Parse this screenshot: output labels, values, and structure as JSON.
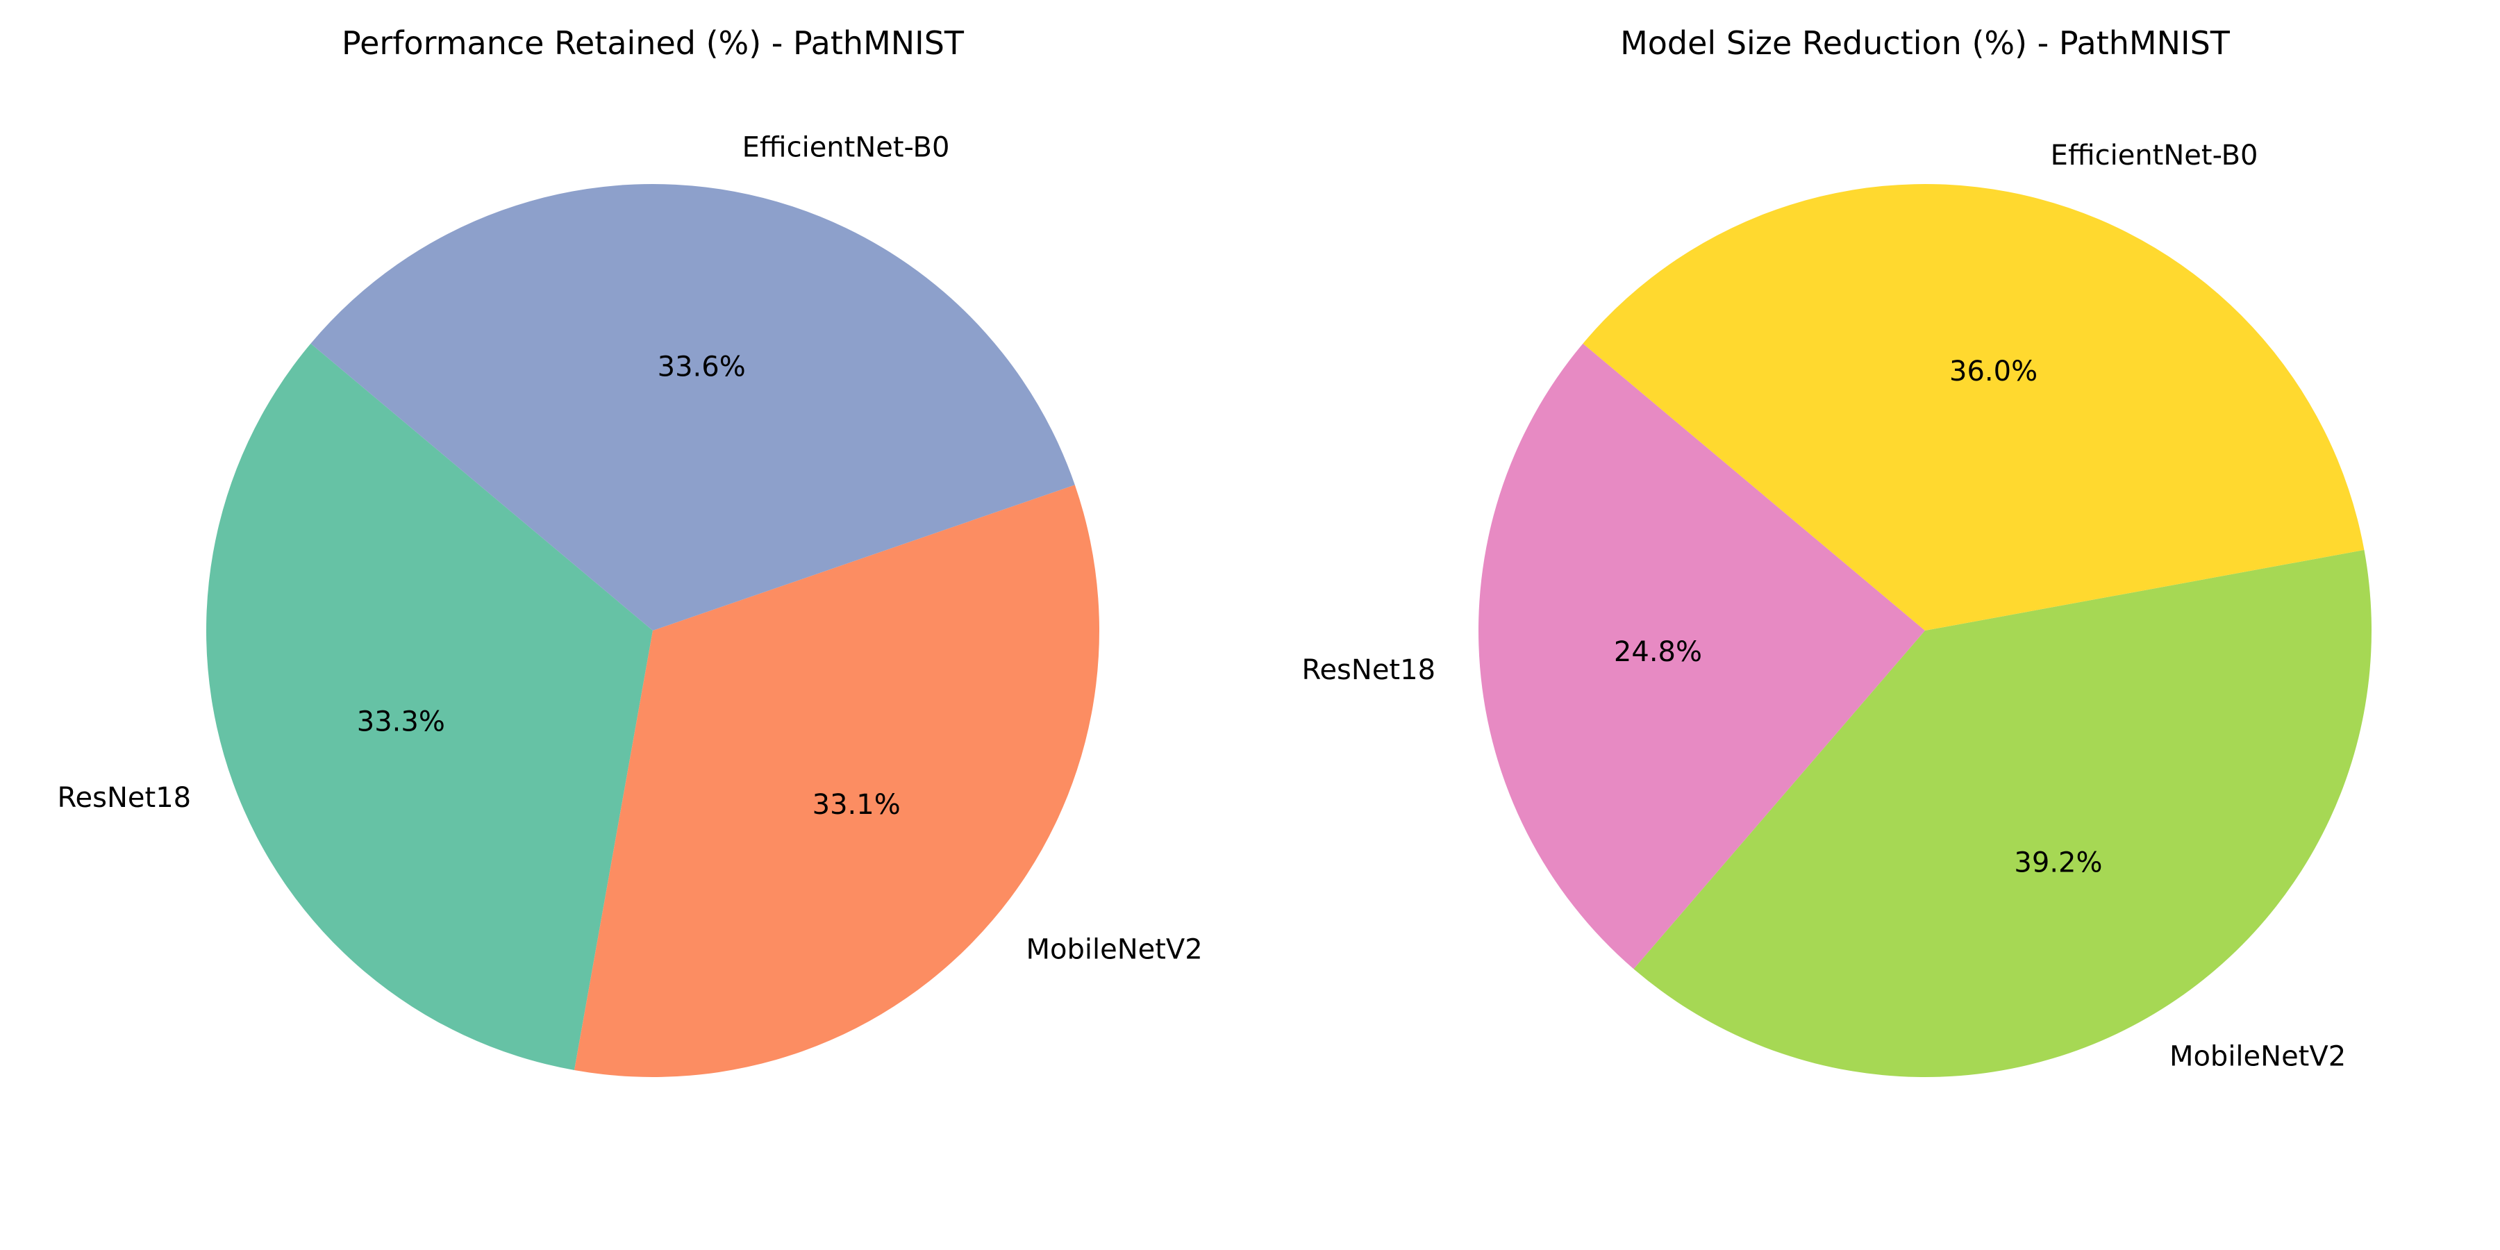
{
  "chart_data": [
    {
      "type": "pie",
      "title": "Performance Retained (%) - PathMNIST",
      "slices": [
        {
          "label": "ResNet18",
          "value": 33.3,
          "pct_label": "33.3%",
          "color": "#66c2a5"
        },
        {
          "label": "MobileNetV2",
          "value": 33.1,
          "pct_label": "33.1%",
          "color": "#fc8d62"
        },
        {
          "label": "EfficientNet-B0",
          "value": 33.6,
          "pct_label": "33.6%",
          "color": "#8da0cb"
        }
      ]
    },
    {
      "type": "pie",
      "title": "Model Size Reduction (%) - PathMNIST",
      "slices": [
        {
          "label": "ResNet18",
          "value": 24.8,
          "pct_label": "24.8%",
          "color": "#e78ac3"
        },
        {
          "label": "MobileNetV2",
          "value": 39.2,
          "pct_label": "39.2%",
          "color": "#a6d854"
        },
        {
          "label": "EfficientNet-B0",
          "value": 36.0,
          "pct_label": "36.0%",
          "color": "#ffd92f"
        }
      ]
    }
  ]
}
